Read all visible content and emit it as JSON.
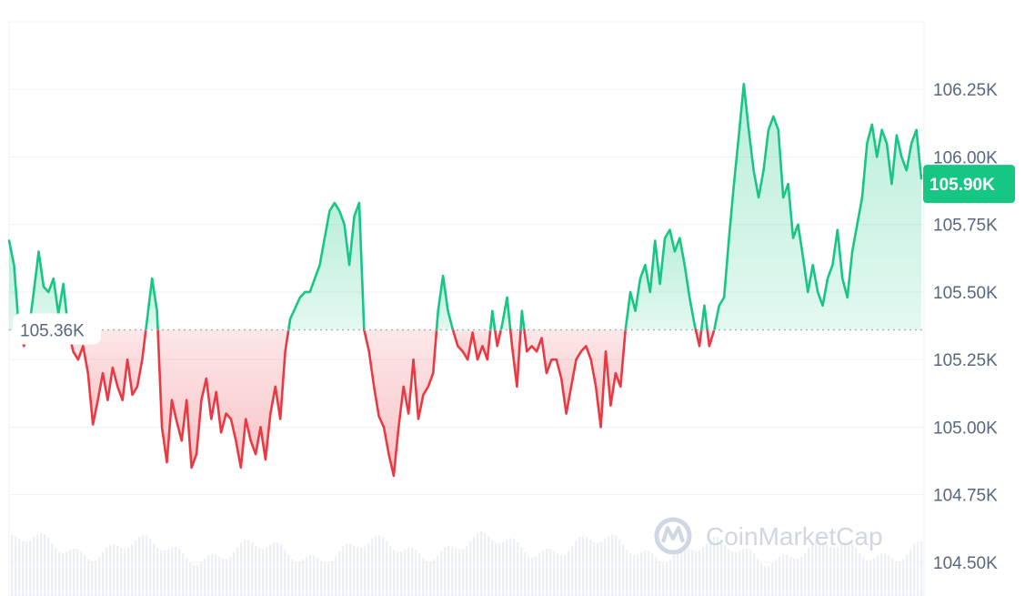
{
  "watermark": {
    "brand": "CoinMarketCap"
  },
  "colors": {
    "up": "#16c784",
    "down": "#ea3943",
    "grid": "#eff2f5",
    "axis_text": "#58667e"
  },
  "chart_data": {
    "type": "area",
    "ylim": [
      104.375,
      106.5
    ],
    "y_ticks": [
      104.5,
      104.75,
      105.0,
      105.25,
      105.5,
      105.75,
      106.0,
      106.25
    ],
    "y_tick_labels": [
      "104.50K",
      "104.75K",
      "105.00K",
      "105.25K",
      "105.50K",
      "105.75K",
      "106.00K",
      "106.25K"
    ],
    "reference": {
      "value": 105.36,
      "label": "105.36K"
    },
    "current": {
      "value": 105.9,
      "label": "105.90K"
    },
    "grid": true,
    "volume_bars": true,
    "series": [
      {
        "values": [
          105.69,
          105.6,
          105.36,
          105.3,
          105.36,
          105.5,
          105.65,
          105.52,
          105.5,
          105.55,
          105.42,
          105.53,
          105.36,
          105.28,
          105.25,
          105.3,
          105.2,
          105.01,
          105.1,
          105.2,
          105.1,
          105.22,
          105.15,
          105.1,
          105.25,
          105.12,
          105.15,
          105.25,
          105.4,
          105.55,
          105.43,
          105.0,
          104.87,
          105.1,
          105.02,
          104.95,
          105.1,
          104.85,
          104.9,
          105.1,
          105.18,
          105.03,
          105.13,
          104.98,
          105.05,
          105.03,
          104.95,
          104.85,
          105.03,
          104.95,
          104.9,
          105.0,
          104.88,
          105.05,
          105.15,
          105.03,
          105.28,
          105.4,
          105.44,
          105.48,
          105.5,
          105.5,
          105.55,
          105.6,
          105.7,
          105.8,
          105.83,
          105.8,
          105.75,
          105.6,
          105.78,
          105.83,
          105.36,
          105.28,
          105.15,
          105.04,
          105.0,
          104.9,
          104.82,
          105.0,
          105.15,
          105.05,
          105.25,
          105.03,
          105.12,
          105.15,
          105.2,
          105.43,
          105.56,
          105.43,
          105.36,
          105.3,
          105.28,
          105.25,
          105.35,
          105.25,
          105.3,
          105.25,
          105.43,
          105.3,
          105.38,
          105.48,
          105.3,
          105.15,
          105.43,
          105.28,
          105.3,
          105.28,
          105.33,
          105.2,
          105.25,
          105.25,
          105.18,
          105.05,
          105.15,
          105.25,
          105.28,
          105.3,
          105.25,
          105.15,
          105.0,
          105.28,
          105.08,
          105.2,
          105.15,
          105.36,
          105.5,
          105.43,
          105.55,
          105.6,
          105.5,
          105.69,
          105.53,
          105.7,
          105.73,
          105.65,
          105.7,
          105.6,
          105.48,
          105.38,
          105.3,
          105.45,
          105.3,
          105.36,
          105.45,
          105.48,
          105.7,
          105.9,
          106.08,
          106.27,
          106.1,
          105.95,
          105.85,
          105.95,
          106.1,
          106.15,
          106.1,
          105.85,
          105.9,
          105.7,
          105.75,
          105.63,
          105.5,
          105.6,
          105.5,
          105.45,
          105.55,
          105.6,
          105.73,
          105.55,
          105.48,
          105.65,
          105.75,
          105.85,
          106.05,
          106.12,
          106.0,
          106.1,
          106.05,
          105.9,
          106.08,
          106.0,
          105.95,
          106.05,
          106.1,
          105.92
        ]
      }
    ]
  }
}
